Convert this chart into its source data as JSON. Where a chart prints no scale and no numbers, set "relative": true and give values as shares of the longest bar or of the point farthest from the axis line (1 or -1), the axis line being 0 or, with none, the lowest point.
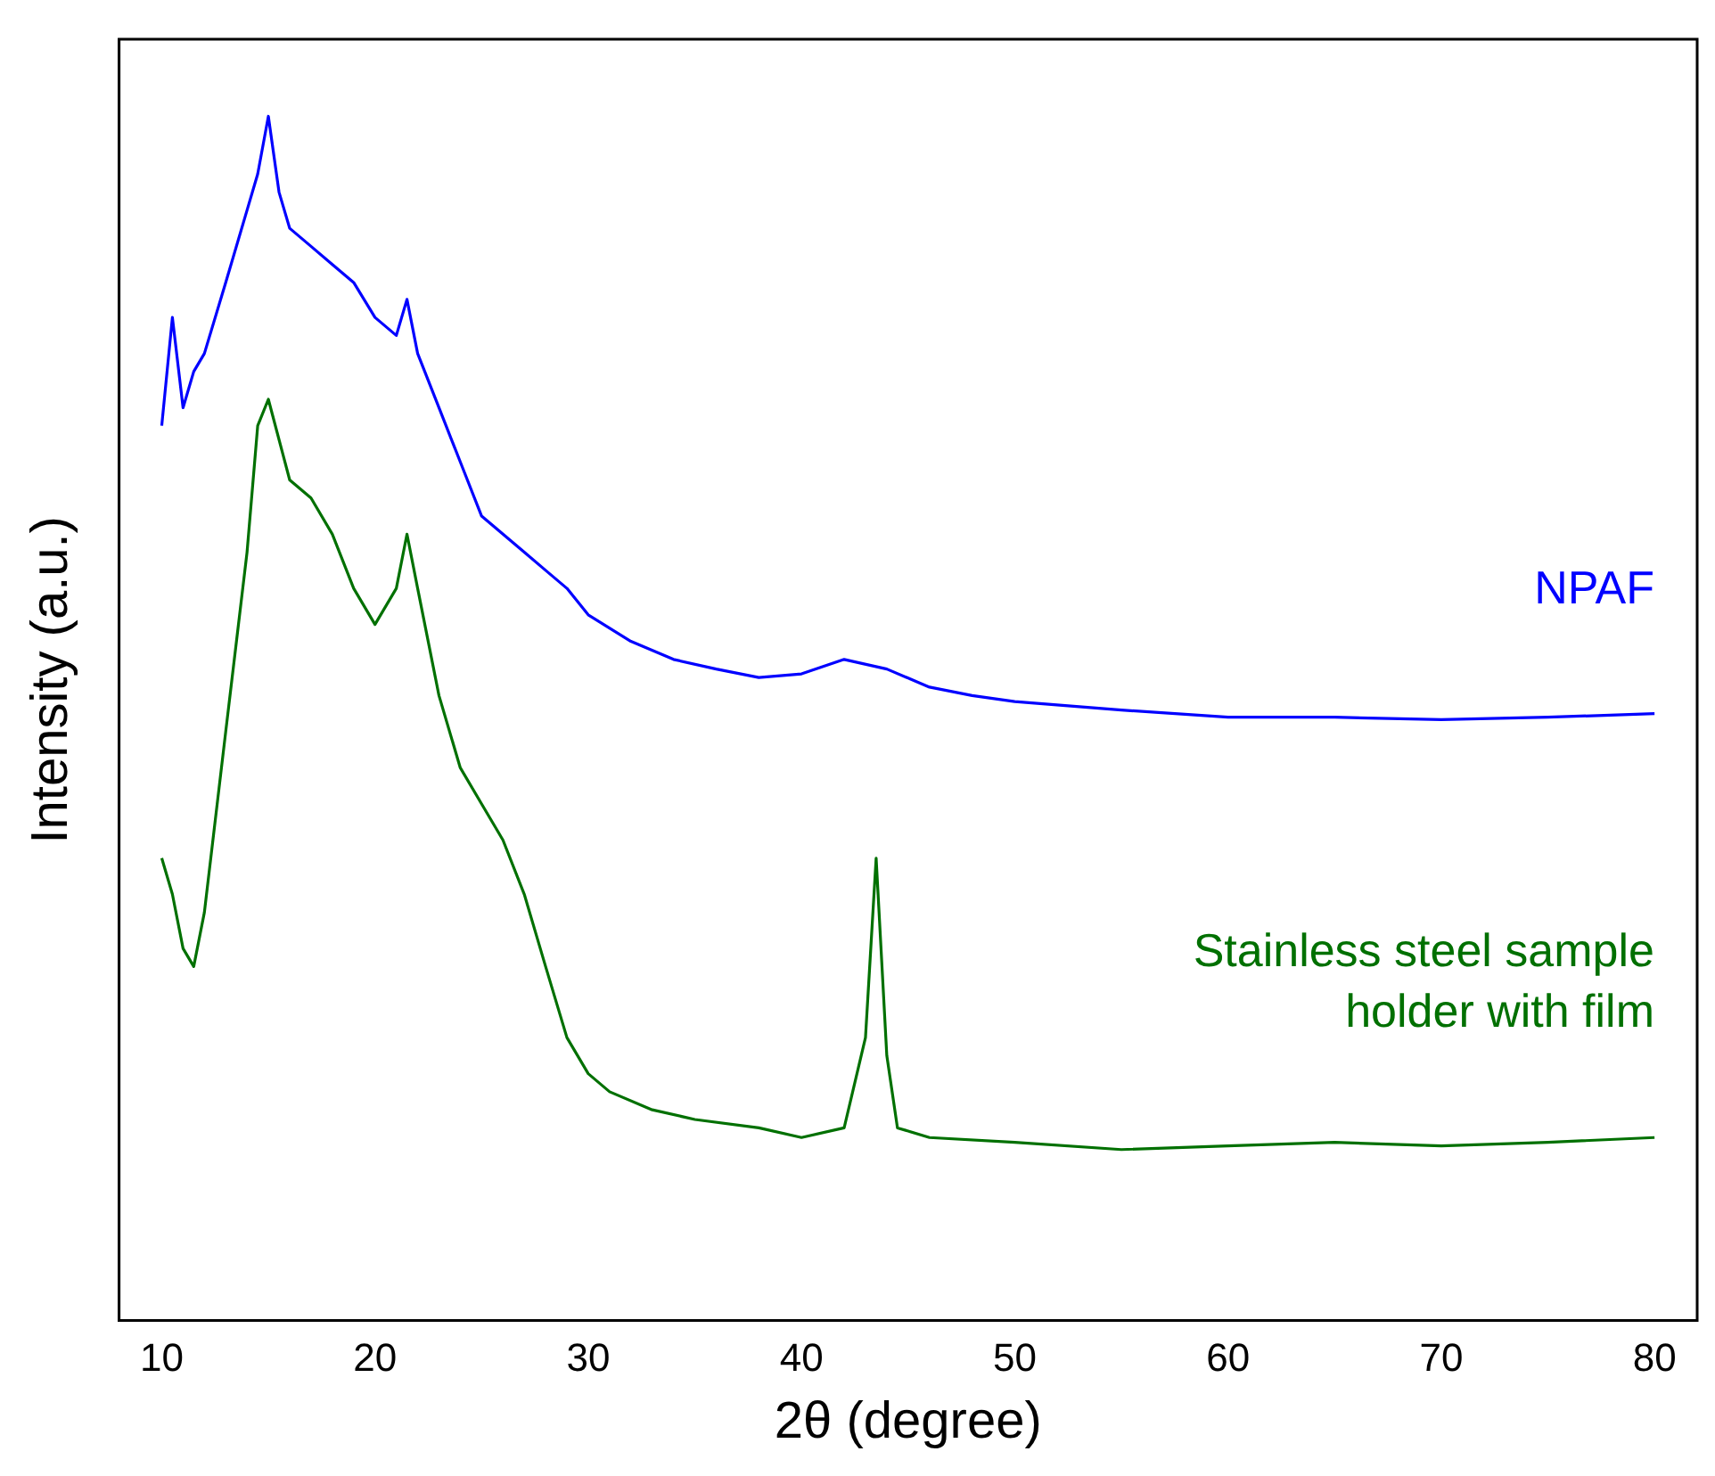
{
  "chart_data": {
    "type": "line",
    "relative": true,
    "xlabel": "2θ (degree)",
    "ylabel": "Intensity (a.u.)",
    "x": [
      10,
      10.5,
      11,
      11.5,
      12,
      13,
      14,
      14.5,
      15,
      15.5,
      16,
      17,
      18,
      19,
      20,
      21,
      21.5,
      22,
      23,
      24,
      25,
      26,
      27,
      28,
      29,
      30,
      32,
      34,
      36,
      38,
      40,
      42,
      44,
      46,
      48,
      50,
      55,
      60,
      65,
      70,
      75,
      80
    ],
    "xlim": [
      8,
      82
    ],
    "xticks": [
      10,
      20,
      30,
      40,
      50,
      60,
      70,
      80
    ],
    "grid": false,
    "legend": false,
    "marker": "none",
    "line_style": "solid",
    "series": [
      {
        "name": "NPAF",
        "color": "#0000ff",
        "values": [
          0.743,
          0.833,
          0.758,
          0.788,
          0.803,
          0.862,
          0.922,
          0.952,
          1.0,
          0.937,
          0.907,
          0.892,
          0.877,
          0.862,
          0.833,
          0.818,
          0.848,
          0.803,
          0.758,
          0.713,
          0.668,
          0.653,
          0.638,
          0.623,
          0.608,
          0.586,
          0.564,
          0.549,
          0.541,
          0.534,
          0.537,
          0.549,
          0.541,
          0.526,
          0.519,
          0.514,
          0.507,
          0.501,
          0.501,
          0.499,
          0.501,
          0.504
        ]
      },
      {
        "name": "Stainless steel sample holder with film",
        "color": "#007000",
        "x": [
          10,
          10.5,
          11,
          11.5,
          12,
          13,
          14,
          14.5,
          15,
          16,
          17,
          18,
          19,
          20,
          21,
          21.5,
          22,
          23,
          24,
          25,
          26,
          27,
          28,
          29,
          30,
          31,
          33,
          35,
          38,
          40,
          42,
          43,
          43.5,
          44,
          44.5,
          46,
          50,
          55,
          60,
          65,
          70,
          75,
          80
        ],
        "values": [
          0.384,
          0.354,
          0.309,
          0.294,
          0.339,
          0.489,
          0.638,
          0.743,
          0.765,
          0.698,
          0.683,
          0.653,
          0.608,
          0.578,
          0.608,
          0.653,
          0.608,
          0.519,
          0.459,
          0.429,
          0.399,
          0.354,
          0.294,
          0.235,
          0.205,
          0.19,
          0.175,
          0.167,
          0.16,
          0.152,
          0.16,
          0.235,
          0.384,
          0.22,
          0.16,
          0.152,
          0.148,
          0.142,
          0.145,
          0.148,
          0.145,
          0.148,
          0.152
        ]
      }
    ]
  }
}
